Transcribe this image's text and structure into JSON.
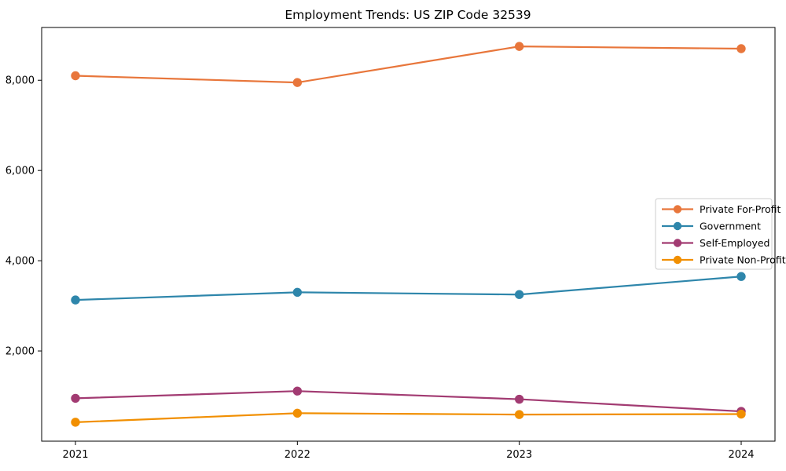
{
  "chart_data": {
    "type": "line",
    "title": "Employment Trends: US ZIP Code 32539",
    "xlabel": "",
    "ylabel": "",
    "x": [
      "2021",
      "2022",
      "2023",
      "2024"
    ],
    "series": [
      {
        "name": "Private For-Profit",
        "color": "#E8763B",
        "values": [
          8100,
          7950,
          8750,
          8700
        ]
      },
      {
        "name": "Government",
        "color": "#2E86AB",
        "values": [
          3130,
          3300,
          3250,
          3650
        ]
      },
      {
        "name": "Self-Employed",
        "color": "#A23B72",
        "values": [
          950,
          1110,
          930,
          660
        ]
      },
      {
        "name": "Private Non-Profit",
        "color": "#F18F01",
        "values": [
          420,
          620,
          590,
          600
        ]
      }
    ],
    "yticks": [
      2000,
      4000,
      6000,
      8000
    ],
    "ytick_labels": [
      "2,000",
      "4,000",
      "6,000",
      "8,000"
    ],
    "ylim": [
      0,
      9170
    ],
    "grid": false,
    "legend_position": "right",
    "marker": "circle",
    "axis_color": "#000000",
    "legend_border_color": "#cccccc",
    "legend_background": "#ffffff"
  }
}
